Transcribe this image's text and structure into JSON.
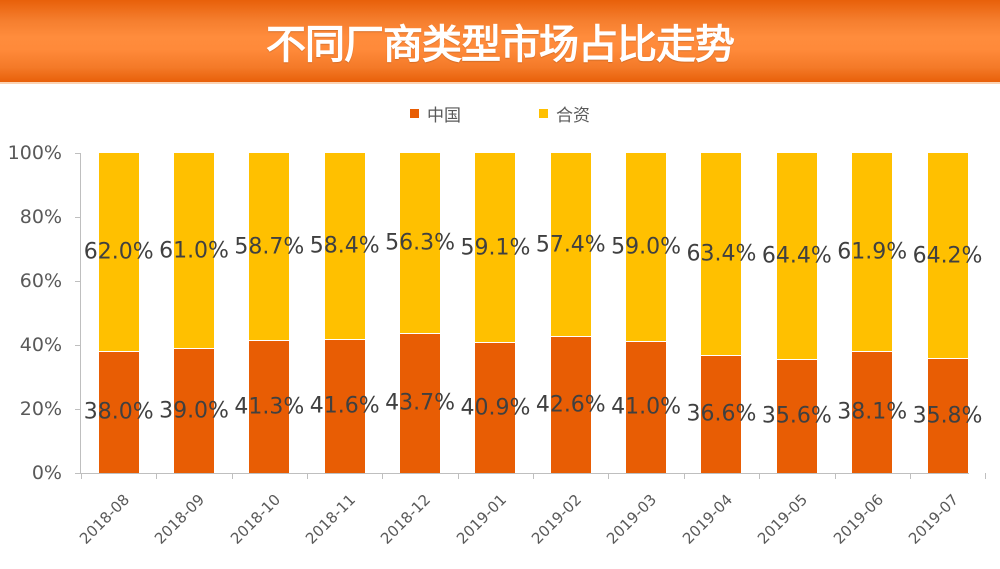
{
  "header": {
    "title": "不同厂商类型市场占比走势"
  },
  "legend": {
    "items": [
      {
        "label": "中国",
        "color": "#E85D04"
      },
      {
        "label": "合资",
        "color": "#FFC000"
      }
    ]
  },
  "colors": {
    "china": "#E85D04",
    "jv": "#FFC000",
    "banner": "#F57E2E",
    "axis": "#BFBFBF",
    "text": "#404040"
  },
  "chart_data": {
    "type": "bar",
    "stacked": true,
    "normalized": true,
    "title": "不同厂商类型市场占比走势",
    "xlabel": "",
    "ylabel": "",
    "ylim": [
      0,
      100
    ],
    "yticks": [
      "0%",
      "20%",
      "40%",
      "60%",
      "80%",
      "100%"
    ],
    "legend_position": "top",
    "grid": false,
    "categories": [
      "2018-08",
      "2018-09",
      "2018-10",
      "2018-11",
      "2018-12",
      "2019-01",
      "2019-02",
      "2019-03",
      "2019-04",
      "2019-05",
      "2019-06",
      "2019-07"
    ],
    "series": [
      {
        "name": "中国",
        "values": [
          38.0,
          39.0,
          41.3,
          41.6,
          43.7,
          40.9,
          42.6,
          41.0,
          36.6,
          35.6,
          38.1,
          35.8
        ],
        "labels": [
          "38.0%",
          "39.0%",
          "41.3%",
          "41.6%",
          "43.7%",
          "40.9%",
          "42.6%",
          "41.0%",
          "36.6%",
          "35.6%",
          "38.1%",
          "35.8%"
        ]
      },
      {
        "name": "合资",
        "values": [
          62.0,
          61.0,
          58.7,
          58.4,
          56.3,
          59.1,
          57.4,
          59.0,
          63.4,
          64.4,
          61.9,
          64.2
        ],
        "labels": [
          "62.0%",
          "61.0%",
          "58.7%",
          "58.4%",
          "56.3%",
          "59.1%",
          "57.4%",
          "59.0%",
          "63.4%",
          "64.4%",
          "61.9%",
          "64.2%"
        ]
      }
    ]
  }
}
